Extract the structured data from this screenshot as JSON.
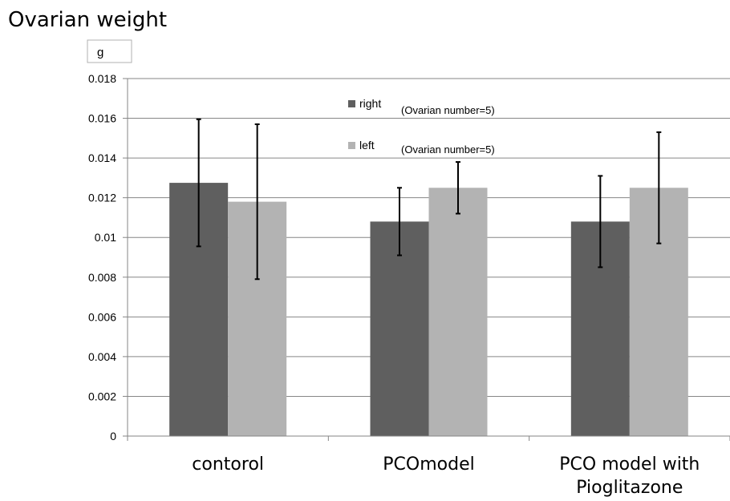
{
  "chart_data": {
    "type": "bar",
    "title": "Ovarian weight",
    "unit_label": "g",
    "xlabel": "",
    "ylabel": "",
    "ylim": [
      0,
      0.018
    ],
    "y_ticks": [
      "0",
      "0.002",
      "0.004",
      "0.006",
      "0.008",
      "0.01",
      "0.012",
      "0.014",
      "0.016",
      "0.018"
    ],
    "grid": "horizontal",
    "legend_placement": "top-center",
    "categories": [
      [
        "contorol"
      ],
      [
        "PCOmodel"
      ],
      [
        "PCO model with",
        "Pioglitazone"
      ]
    ],
    "series": [
      {
        "name": "right",
        "note": "(Ovarian number=5)",
        "color": "#5f5f5f",
        "values": [
          0.01275,
          0.0108,
          0.0108
        ],
        "error": [
          0.0032,
          0.0017,
          0.0023
        ]
      },
      {
        "name": "left",
        "note": "(Ovarian number=5)",
        "color": "#b3b3b3",
        "values": [
          0.0118,
          0.0125,
          0.0125
        ],
        "error": [
          0.0039,
          0.0013,
          0.0028
        ]
      }
    ],
    "colors": {
      "grid": "#868686",
      "axis": "#868686",
      "error_bar": "#000000",
      "unit_box_border": "#b0b0b0"
    }
  }
}
